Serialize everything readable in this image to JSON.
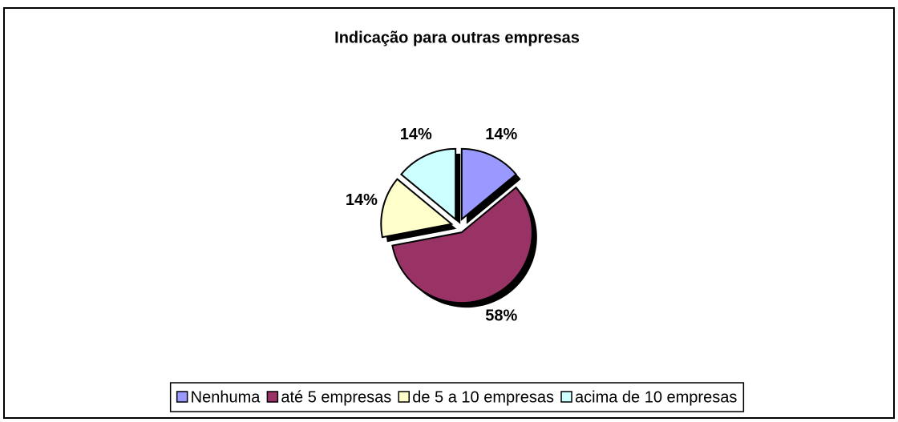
{
  "chart_data": {
    "type": "pie",
    "title": "Indicação para outras empresas",
    "categories": [
      "Nenhuma",
      "até 5 empresas",
      "de 5 a 10 empresas",
      "acima de 10 empresas"
    ],
    "values": [
      14,
      58,
      14,
      14
    ],
    "value_labels": [
      "14%",
      "58%",
      "14%",
      "14%"
    ],
    "colors": [
      "#9999ff",
      "#993366",
      "#ffffcc",
      "#ccffff"
    ],
    "legend": "bottom"
  }
}
